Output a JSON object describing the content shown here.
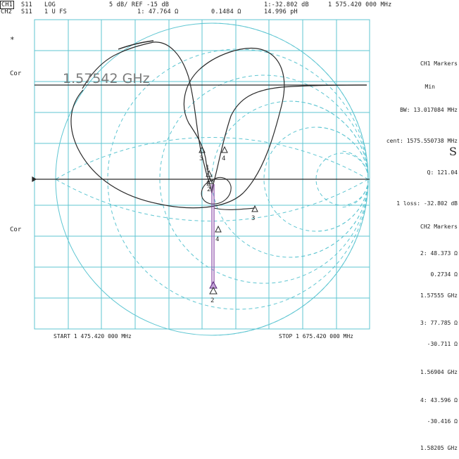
{
  "header": {
    "ch1_tag": "CH1",
    "ch1_param": "S11",
    "ch1_format": "LOG",
    "ch1_scale": "5 dB/ REF -15 dB",
    "ch1_marker_value": "1:-32.802 dB",
    "ch1_marker_freq": "1 575.420 000 MHz",
    "ch2_tag": "CH2",
    "ch2_param": "S11",
    "ch2_format": "1 U FS",
    "ch2_marker_readout": "1: 47.764 Ω",
    "ch2_marker_reactance": "0.1484 Ω",
    "ch2_marker_element": "14.996 pH"
  },
  "left_labels": {
    "asterisk": "*",
    "cor_top": "Cor",
    "cor_bottom": "Cor"
  },
  "plot": {
    "big_frequency": "1.57542 GHz",
    "start_label": "START 1 475.420 000 MHz",
    "stop_label": "STOP 1 675.420 000 MHz",
    "marker_labels": [
      "1",
      "2",
      "3",
      "4",
      "3",
      "4",
      "2",
      "2"
    ]
  },
  "ch1_markers": {
    "title": "CH1 Markers",
    "subtitle": "Min",
    "bw": "BW: 13.017084 MHz",
    "cent": "cent: 1575.550738 MHz",
    "q": "Q: 121.04",
    "loss": "1 loss: -32.802 dB"
  },
  "side_fragment": "S",
  "ch2_markers": {
    "title": "CH2 Markers",
    "m2_r": "2: 48.373 Ω",
    "m2_x": "0.2734 Ω",
    "m2_f": "1.57555 GHz",
    "m3_r": "3: 77.785 Ω",
    "m3_x": "-30.711 Ω",
    "m3_f": "1.56904 GHz",
    "m4_r": "4: 43.596 Ω",
    "m4_x": "-30.416 Ω",
    "m4_f": "1.58205 GHz"
  },
  "colors": {
    "grid": "#5fc6d2",
    "trace": "#2a2a2a",
    "text": "#222222"
  }
}
